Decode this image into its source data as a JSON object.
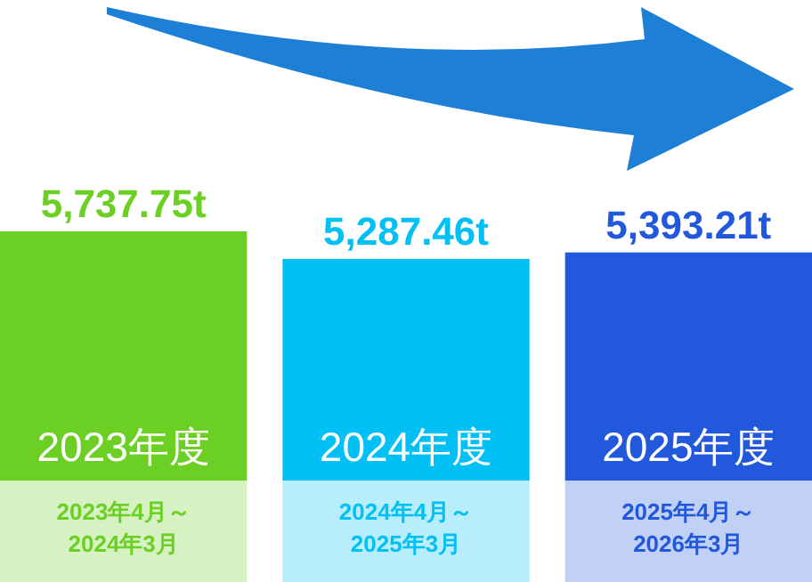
{
  "chart_data": {
    "type": "bar",
    "categories": [
      "2023年度",
      "2024年度",
      "2025年度"
    ],
    "values": [
      5737.75,
      5287.46,
      5393.21
    ],
    "value_labels": [
      "5,737.75t",
      "5,287.46t",
      "5,393.21t"
    ],
    "colors": [
      "#6ccf24",
      "#00c0f5",
      "#2258dc"
    ],
    "annotations": [
      "2023年4月～\n2024年3月",
      "2024年4月～\n2025年3月",
      "2025年4月～\n2026年3月"
    ]
  }
}
